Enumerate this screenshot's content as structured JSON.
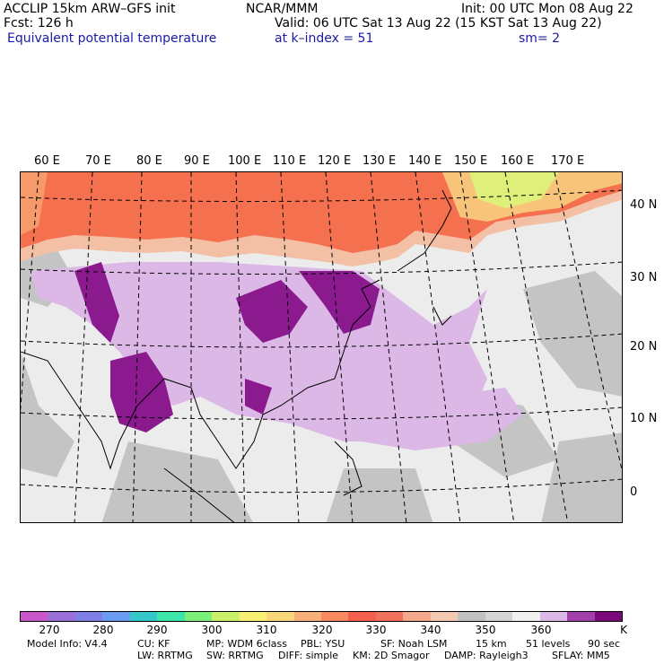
{
  "header": {
    "model": "ACCLIP 15km ARW–GFS init",
    "org": "NCAR/MMM",
    "init": "Init: 00 UTC Mon 08 Aug 22",
    "fcst": "Fcst:  126 h",
    "valid": "Valid: 06 UTC Sat 13 Aug 22 (15 KST Sat 13 Aug 22)",
    "field": "Equivalent potential temperature",
    "level": "at k–index =  51",
    "smooth": "sm= 2"
  },
  "lon_labels": [
    "60 E",
    "70 E",
    "80 E",
    "90 E",
    "100 E",
    "110 E",
    "120 E",
    "130 E",
    "140 E",
    "150 E",
    "160 E",
    "170 E"
  ],
  "lat_labels": [
    "40 N",
    "30 N",
    "20 N",
    "10 N",
    "0"
  ],
  "colorbar": {
    "colors": [
      "#c957c9",
      "#9a6fd8",
      "#7f7fe6",
      "#6a9bf0",
      "#36c8c8",
      "#3ce6a8",
      "#7aef7a",
      "#c8f06a",
      "#f7f075",
      "#f7d77a",
      "#f7b07a",
      "#f78a5f",
      "#f55f4e",
      "#f2705e",
      "#f3a88c",
      "#f3c8b0",
      "#c0c0c0",
      "#d4d4d4",
      "#f0f0f0",
      "#dcb8e6",
      "#a040a8",
      "#7a0a7a"
    ],
    "labels": [
      "270",
      "280",
      "290",
      "300",
      "310",
      "320",
      "330",
      "340",
      "350",
      "360"
    ],
    "unit": "K"
  },
  "model_info": {
    "line1": [
      "Model Info: V4.4",
      "CU: KF",
      "MP: WDM 6class",
      "PBL: YSU",
      "SF: Noah LSM",
      "15 km",
      "51 levels",
      "90 sec"
    ],
    "line2": [
      "LW: RRTMG",
      "SW: RRTMG",
      "DIFF: simple",
      "KM: 2D Smagor",
      "DAMP: Rayleigh3",
      "SFLAY: MM5"
    ]
  }
}
